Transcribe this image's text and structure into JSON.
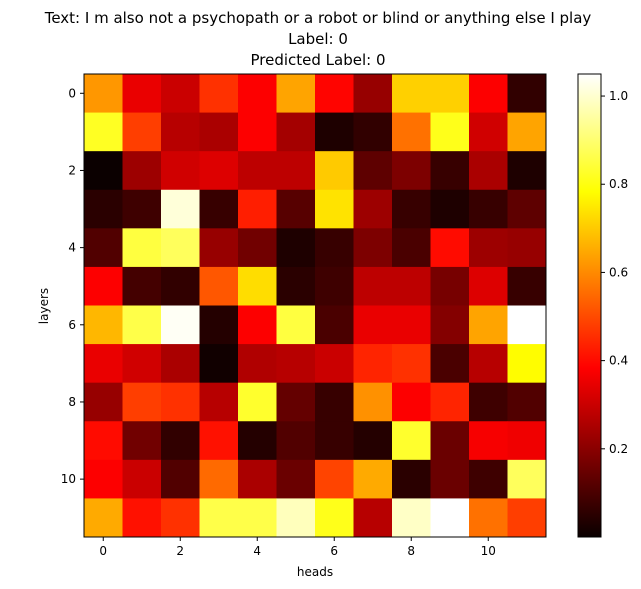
{
  "chart_data": {
    "type": "heatmap",
    "title_lines": [
      "Text: I m also not a psychopath or a robot or blind or anything else I play",
      "Label: 0",
      "Predicted Label: 0"
    ],
    "xlabel": "heads",
    "ylabel": "layers",
    "x_ticks": [
      0,
      2,
      4,
      6,
      8,
      10
    ],
    "y_ticks": [
      0,
      2,
      4,
      6,
      8,
      10
    ],
    "colormap": "hot",
    "colorbar": {
      "min": 0.0,
      "max": 1.05,
      "ticks": [
        0.2,
        0.4,
        0.6,
        0.8,
        1.0
      ],
      "tick_labels": [
        "0.2",
        "0.4",
        "0.6",
        "0.8",
        "1.0"
      ]
    },
    "values": [
      [
        0.62,
        0.35,
        0.3,
        0.46,
        0.38,
        0.64,
        0.39,
        0.22,
        0.71,
        0.71,
        0.38,
        0.06
      ],
      [
        0.82,
        0.48,
        0.27,
        0.25,
        0.38,
        0.24,
        0.03,
        0.06,
        0.56,
        0.81,
        0.31,
        0.64
      ],
      [
        0.0,
        0.23,
        0.31,
        0.33,
        0.28,
        0.28,
        0.7,
        0.13,
        0.18,
        0.07,
        0.25,
        0.03
      ],
      [
        0.05,
        0.08,
        1.01,
        0.07,
        0.43,
        0.12,
        0.74,
        0.23,
        0.07,
        0.03,
        0.07,
        0.13
      ],
      [
        0.11,
        0.85,
        0.88,
        0.22,
        0.16,
        0.03,
        0.07,
        0.18,
        0.1,
        0.4,
        0.23,
        0.22
      ],
      [
        0.38,
        0.09,
        0.06,
        0.52,
        0.73,
        0.05,
        0.08,
        0.28,
        0.28,
        0.17,
        0.33,
        0.07
      ],
      [
        0.67,
        0.86,
        1.04,
        0.04,
        0.38,
        0.85,
        0.1,
        0.35,
        0.35,
        0.19,
        0.64,
        1.05
      ],
      [
        0.35,
        0.31,
        0.25,
        0.01,
        0.26,
        0.27,
        0.3,
        0.44,
        0.46,
        0.1,
        0.27,
        0.78
      ],
      [
        0.22,
        0.48,
        0.46,
        0.27,
        0.83,
        0.14,
        0.07,
        0.61,
        0.38,
        0.44,
        0.08,
        0.11
      ],
      [
        0.4,
        0.16,
        0.06,
        0.41,
        0.04,
        0.11,
        0.07,
        0.04,
        0.83,
        0.15,
        0.37,
        0.36
      ],
      [
        0.38,
        0.3,
        0.11,
        0.55,
        0.25,
        0.15,
        0.49,
        0.65,
        0.05,
        0.15,
        0.08,
        0.88
      ],
      [
        0.65,
        0.41,
        0.46,
        0.86,
        0.86,
        0.98,
        0.81,
        0.27,
        0.99,
        1.05,
        0.56,
        0.48
      ]
    ]
  }
}
